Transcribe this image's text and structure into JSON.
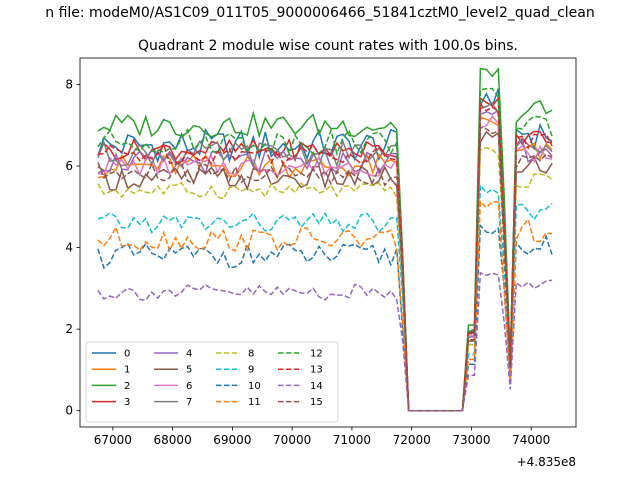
{
  "suptitle": "n file: modeM0/AS1C09_011T05_9000006466_51841cztM0_level2_quad_clean",
  "chart_data": {
    "type": "line",
    "title": "Quadrant 2 module wise count rates with 100.0s bins.",
    "xlabel": "",
    "ylabel": "",
    "x_offset_label": "+4.835e8",
    "xlim": [
      66450,
      74750
    ],
    "ylim": [
      -0.4,
      8.65
    ],
    "xticks": [
      67000,
      68000,
      69000,
      70000,
      71000,
      72000,
      73000,
      74000
    ],
    "xtick_labels": [
      "67000",
      "68000",
      "69000",
      "70000",
      "71000",
      "72000",
      "73000",
      "74000"
    ],
    "yticks": [
      0,
      2,
      4,
      6,
      8
    ],
    "ytick_labels": [
      "0",
      "2",
      "4",
      "6",
      "8"
    ],
    "grid": false,
    "legend": {
      "placement": "lower-left",
      "columns": 4
    },
    "shape": {
      "x_start": 66750,
      "step": 100,
      "gap_start": 71950,
      "gap_end": 72950,
      "flare_a": [
        73100,
        73500
      ],
      "dip_at": 73650,
      "flare_b": [
        73750,
        74350
      ]
    },
    "series": [
      {
        "name": "0",
        "color": "#1f77b4",
        "style": "solid",
        "level": 6.5,
        "noise": 0.4
      },
      {
        "name": "1",
        "color": "#ff7f0e",
        "style": "solid",
        "level": 6.0,
        "noise": 0.3
      },
      {
        "name": "2",
        "color": "#2ca02c",
        "style": "solid",
        "level": 7.0,
        "noise": 0.3
      },
      {
        "name": "3",
        "color": "#d62728",
        "style": "solid",
        "level": 6.4,
        "noise": 0.25
      },
      {
        "name": "4",
        "color": "#9467bd",
        "style": "solid",
        "level": 6.1,
        "noise": 0.3
      },
      {
        "name": "5",
        "color": "#8c564b",
        "style": "solid",
        "level": 5.7,
        "noise": 0.3
      },
      {
        "name": "6",
        "color": "#e377c2",
        "style": "solid",
        "level": 6.0,
        "noise": 0.25
      },
      {
        "name": "7",
        "color": "#7f7f7f",
        "style": "solid",
        "level": 6.3,
        "noise": 0.3
      },
      {
        "name": "8",
        "color": "#bcbd22",
        "style": "dashed",
        "level": 5.4,
        "noise": 0.2
      },
      {
        "name": "9",
        "color": "#17becf",
        "style": "dashed",
        "level": 4.6,
        "noise": 0.25
      },
      {
        "name": "10",
        "color": "#1f77b4",
        "style": "dashed",
        "level": 3.8,
        "noise": 0.3
      },
      {
        "name": "11",
        "color": "#ff7f0e",
        "style": "dashed",
        "level": 4.2,
        "noise": 0.3
      },
      {
        "name": "12",
        "color": "#2ca02c",
        "style": "dashed",
        "level": 6.6,
        "noise": 0.3
      },
      {
        "name": "13",
        "color": "#d62728",
        "style": "dashed",
        "level": 6.3,
        "noise": 0.25
      },
      {
        "name": "14",
        "color": "#9467bd",
        "style": "dashed",
        "level": 2.9,
        "noise": 0.2
      },
      {
        "name": "15",
        "color": "#8c564b",
        "style": "dashed",
        "level": 5.8,
        "noise": 0.3
      }
    ]
  }
}
